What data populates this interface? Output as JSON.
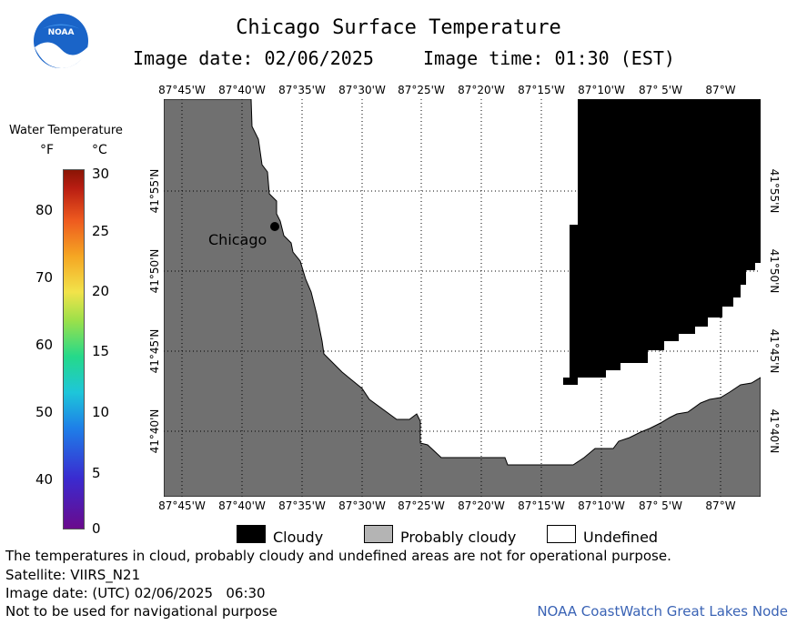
{
  "header": {
    "title": "Chicago Surface Temperature",
    "image_date_label": "Image date: 02/06/2025",
    "image_time_label": "Image time: 01:30 (EST)"
  },
  "logo": {
    "text": "NOAA"
  },
  "legend": {
    "title": "Water Temperature",
    "unit_f": "°F",
    "unit_c": "°C",
    "fahrenheit_ticks": [
      "80",
      "70",
      "60",
      "50",
      "40"
    ],
    "celsius_ticks": [
      "30",
      "25",
      "20",
      "15",
      "10",
      "5",
      "0"
    ]
  },
  "map": {
    "lon_labels": [
      "87°45'W",
      "87°40'W",
      "87°35'W",
      "87°30'W",
      "87°25'W",
      "87°20'W",
      "87°15'W",
      "87°10'W",
      "87° 5'W",
      "87°W"
    ],
    "lat_labels": [
      "41°55'N",
      "41°50'N",
      "41°45'N",
      "41°40'N"
    ],
    "city_label": "Chicago",
    "colors": {
      "land": "#707070",
      "cloud": "#000000",
      "undefined": "#ffffff",
      "grid": "#000000"
    }
  },
  "key": {
    "cloudy": "Cloudy",
    "probably_cloudy": "Probably cloudy",
    "undefined": "Undefined",
    "colors": {
      "cloudy": "#000000",
      "probably_cloudy": "#b4b4b4",
      "undefined": "#ffffff"
    }
  },
  "notes": {
    "disclaimer": "The temperatures in cloud, probably cloudy and undefined areas are not for operational purpose.",
    "satellite": "Satellite: VIIRS_N21",
    "utc_date": "Image date: (UTC) 02/06/2025   06:30",
    "nav": "Not to be used for navigational purpose",
    "credit": "NOAA CoastWatch Great Lakes Node"
  }
}
